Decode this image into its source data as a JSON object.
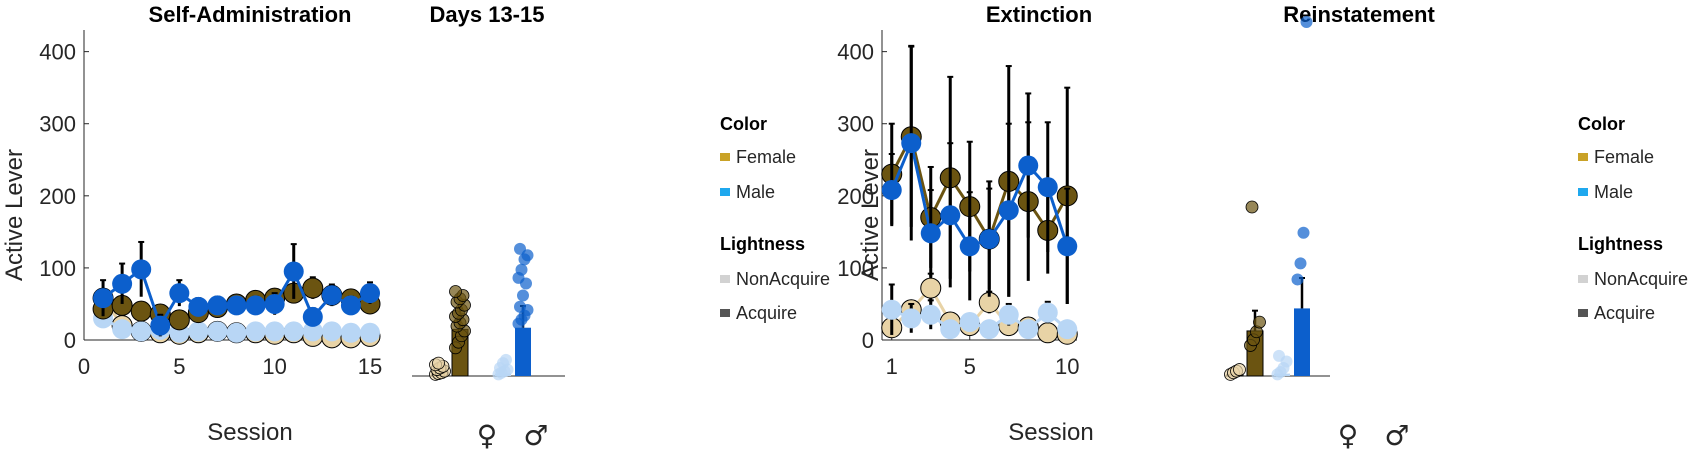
{
  "colors": {
    "female_acquire": "#6b5411",
    "female_nonacquire": "#e8d3a6",
    "male_acquire": "#0c5fcc",
    "male_nonacquire": "#b8d6f5",
    "legend_female": "#c9a227",
    "legend_male": "#1fa8ee",
    "legend_nonacquire": "#d2d2d2",
    "legend_acquire": "#555555"
  },
  "legends": [
    {
      "color_title": "Color",
      "female": "Female",
      "male": "Male",
      "lightness_title": "Lightness",
      "nonacquire": "NonAcquire",
      "acquire": "Acquire"
    },
    {
      "color_title": "Color",
      "female": "Female",
      "male": "Male",
      "lightness_title": "Lightness",
      "nonacquire": "NonAcquire",
      "acquire": "Acquire"
    }
  ],
  "chart_data": [
    {
      "id": "self_admin",
      "type": "line",
      "title": "Self-Administration",
      "xlabel": "Session",
      "ylabel": "Active Lever",
      "xlim": [
        0,
        15
      ],
      "ylim": [
        0,
        430
      ],
      "xticks": [
        "0",
        "5",
        "10",
        "15"
      ],
      "yticks": [
        "0",
        "100",
        "200",
        "300",
        "400"
      ],
      "grid": false,
      "series": [
        {
          "name": "Female Acquire",
          "x": [
            1,
            2,
            3,
            4,
            5,
            6,
            7,
            8,
            9,
            10,
            11,
            12,
            13,
            14,
            15
          ],
          "y": [
            43,
            48,
            40,
            36,
            28,
            38,
            45,
            50,
            55,
            58,
            65,
            72,
            62,
            57,
            50
          ],
          "err": [
            6,
            8,
            8,
            6,
            5,
            6,
            8,
            8,
            10,
            12,
            12,
            15,
            12,
            10,
            10
          ]
        },
        {
          "name": "Female NonAcquire",
          "x": [
            1,
            2,
            3,
            4,
            5,
            6,
            7,
            8,
            9,
            10,
            11,
            12,
            13,
            14,
            15
          ],
          "y": [
            58,
            20,
            12,
            10,
            8,
            10,
            12,
            10,
            10,
            8,
            10,
            5,
            3,
            3,
            5
          ],
          "err": [
            4,
            4,
            4,
            3,
            3,
            3,
            3,
            3,
            3,
            3,
            3,
            3,
            3,
            3,
            3
          ]
        },
        {
          "name": "Male Acquire",
          "x": [
            1,
            2,
            3,
            4,
            5,
            6,
            7,
            8,
            9,
            10,
            11,
            12,
            13,
            14,
            15
          ],
          "y": [
            58,
            78,
            98,
            20,
            65,
            46,
            48,
            48,
            48,
            50,
            95,
            32,
            62,
            48,
            65
          ],
          "err": [
            25,
            28,
            38,
            15,
            18,
            12,
            12,
            10,
            12,
            15,
            38,
            12,
            15,
            12,
            15
          ]
        },
        {
          "name": "Male NonAcquire",
          "x": [
            1,
            2,
            3,
            4,
            5,
            6,
            7,
            8,
            9,
            10,
            11,
            12,
            13,
            14,
            15
          ],
          "y": [
            30,
            15,
            12,
            14,
            10,
            12,
            12,
            10,
            12,
            12,
            12,
            12,
            12,
            10,
            10
          ],
          "err": [
            5,
            4,
            4,
            3,
            3,
            3,
            3,
            3,
            3,
            3,
            3,
            3,
            3,
            3,
            3
          ]
        }
      ]
    },
    {
      "id": "days_13_15",
      "type": "bar",
      "title": "Days 13-15",
      "ylim": [
        0,
        430
      ],
      "categories": [
        "♀",
        "♂"
      ],
      "bars": [
        {
          "group": "female",
          "kind": "nonacquire",
          "value": 5
        },
        {
          "group": "female",
          "kind": "acquire",
          "value": 58
        },
        {
          "group": "male",
          "kind": "nonacquire",
          "value": 3
        },
        {
          "group": "male",
          "kind": "acquire",
          "value": 60
        }
      ],
      "points": {
        "female_nonacquire": [
          2,
          3,
          4,
          6,
          8,
          10,
          12,
          14,
          16
        ],
        "female_acquire": [
          35,
          42,
          50,
          56,
          62,
          66,
          70,
          74,
          78,
          82,
          88,
          92,
          96,
          100,
          105
        ],
        "male_nonacquire": [
          2,
          4,
          6,
          8,
          10,
          16,
          20
        ],
        "male_acquire": [
          65,
          70,
          75,
          82,
          86,
          100,
          115,
          122,
          132,
          145,
          150,
          158
        ]
      }
    },
    {
      "id": "extinction",
      "type": "line",
      "title": "Extinction",
      "xlabel": "Session",
      "ylabel": "Active Lever",
      "xlim": [
        0.5,
        10.5
      ],
      "ylim": [
        0,
        430
      ],
      "xticks": [
        "1",
        "5",
        "10"
      ],
      "yticks": [
        "0",
        "100",
        "200",
        "300",
        "400"
      ],
      "grid": false,
      "series": [
        {
          "name": "Female Acquire",
          "x": [
            1,
            2,
            3,
            4,
            5,
            6,
            7,
            8,
            9,
            10
          ],
          "y": [
            230,
            282,
            170,
            225,
            185,
            140,
            220,
            192,
            152,
            200
          ],
          "err": [
            70,
            125,
            70,
            140,
            90,
            70,
            160,
            110,
            60,
            150
          ]
        },
        {
          "name": "Female NonAcquire",
          "x": [
            1,
            2,
            3,
            4,
            5,
            6,
            7,
            8,
            9,
            10
          ],
          "y": [
            17,
            42,
            72,
            25,
            20,
            52,
            20,
            18,
            10,
            8
          ],
          "err": [
            10,
            12,
            20,
            10,
            8,
            15,
            10,
            10,
            5,
            5
          ]
        },
        {
          "name": "Male Acquire",
          "x": [
            1,
            2,
            3,
            4,
            5,
            6,
            7,
            8,
            9,
            10
          ],
          "y": [
            208,
            273,
            148,
            173,
            130,
            140,
            180,
            242,
            212,
            130
          ],
          "err": [
            50,
            135,
            60,
            100,
            75,
            80,
            120,
            100,
            90,
            80
          ]
        },
        {
          "name": "Male NonAcquire",
          "x": [
            1,
            2,
            3,
            4,
            5,
            6,
            7,
            8,
            9,
            10
          ],
          "y": [
            42,
            30,
            35,
            15,
            25,
            15,
            35,
            15,
            38,
            15
          ],
          "err": [
            35,
            20,
            20,
            10,
            10,
            10,
            15,
            10,
            15,
            10
          ]
        }
      ]
    },
    {
      "id": "reinstatement",
      "type": "bar",
      "title": "Reinstatement",
      "ylim": [
        0,
        430
      ],
      "categories": [
        "♀",
        "♂"
      ],
      "bars": [
        {
          "group": "female",
          "kind": "nonacquire",
          "value": 2
        },
        {
          "group": "female",
          "kind": "acquire",
          "value": 56
        },
        {
          "group": "male",
          "kind": "nonacquire",
          "value": 3
        },
        {
          "group": "male",
          "kind": "acquire",
          "value": 84
        }
      ],
      "points": {
        "female_nonacquire": [
          2,
          4,
          6,
          8
        ],
        "female_acquire": [
          38,
          45,
          55,
          67,
          210
        ],
        "male_nonacquire": [
          2,
          5,
          10,
          18,
          25
        ],
        "male_acquire": [
          120,
          140,
          178,
          440
        ]
      }
    }
  ]
}
